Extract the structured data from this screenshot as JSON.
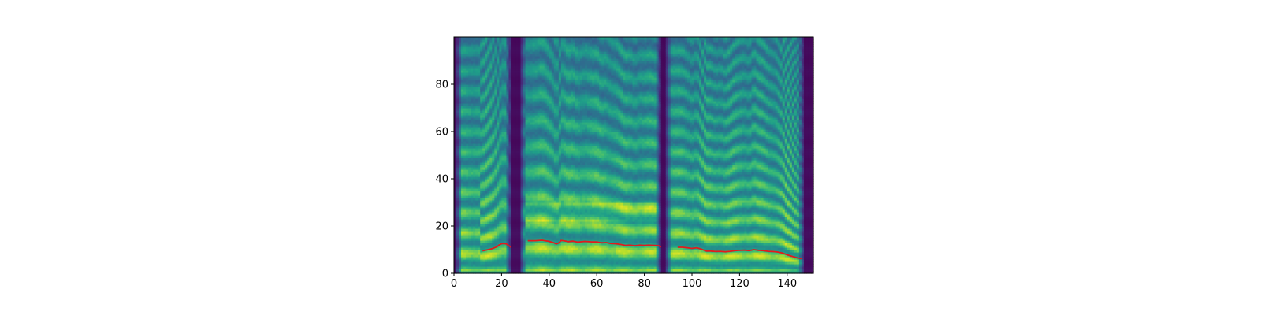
{
  "chart_data": {
    "type": "heatmap",
    "title": "",
    "xlabel": "",
    "ylabel": "",
    "xlim": [
      0,
      151
    ],
    "ylim": [
      0,
      100
    ],
    "grid": false,
    "colormap": "viridis",
    "x_ticks": [
      "0",
      "20",
      "40",
      "60",
      "80",
      "100",
      "120",
      "140"
    ],
    "x_tick_values": [
      0,
      20,
      40,
      60,
      80,
      100,
      120,
      140
    ],
    "y_ticks": [
      "0",
      "20",
      "40",
      "60",
      "80"
    ],
    "y_tick_values": [
      0,
      20,
      40,
      60,
      80
    ],
    "heatmap": {
      "frames": 151,
      "bins": 100,
      "silent_regions": [
        [
          0,
          1
        ],
        [
          24,
          28
        ],
        [
          87,
          89
        ],
        [
          147,
          151
        ]
      ],
      "pitch_contour_harmonic_bands": true
    },
    "series": [
      {
        "type": "line",
        "color": "#e31a1c",
        "segments": [
          {
            "x": [
              12,
              14,
              16,
              18,
              19,
              20,
              21,
              22,
              23,
              24
            ],
            "y": [
              9.5,
              9.9,
              10.4,
              11.2,
              12.0,
              12.5,
              12.6,
              12.4,
              11.7,
              11.0
            ]
          },
          {
            "x": [
              31,
              34,
              37,
              40,
              42,
              43,
              44,
              45,
              46,
              48,
              50,
              52,
              55,
              58,
              60,
              62,
              64,
              66,
              68,
              70,
              72,
              74,
              76,
              78,
              80,
              82,
              84,
              86,
              87
            ],
            "y": [
              13.8,
              13.8,
              14.0,
              13.5,
              12.9,
              12.4,
              12.8,
              13.9,
              13.8,
              13.4,
              13.6,
              13.2,
              13.5,
              13.3,
              13.3,
              12.9,
              13.0,
              12.6,
              12.5,
              12.2,
              11.8,
              11.9,
              11.6,
              11.9,
              11.8,
              11.9,
              11.8,
              11.7,
              11.1
            ]
          },
          {
            "x": [
              94,
              96,
              98,
              100,
              102,
              104,
              106,
              108,
              110,
              112,
              114,
              116,
              118,
              120,
              122,
              124,
              126,
              128,
              130,
              132,
              134,
              136,
              138,
              140,
              142,
              144,
              146
            ],
            "y": [
              11.0,
              11.0,
              10.8,
              10.5,
              10.8,
              10.2,
              9.4,
              9.4,
              9.2,
              9.3,
              9.1,
              9.3,
              9.6,
              9.7,
              9.8,
              9.6,
              10.0,
              9.7,
              9.6,
              9.3,
              9.2,
              9.0,
              8.6,
              7.8,
              7.2,
              6.6,
              6.2
            ]
          }
        ]
      }
    ]
  }
}
